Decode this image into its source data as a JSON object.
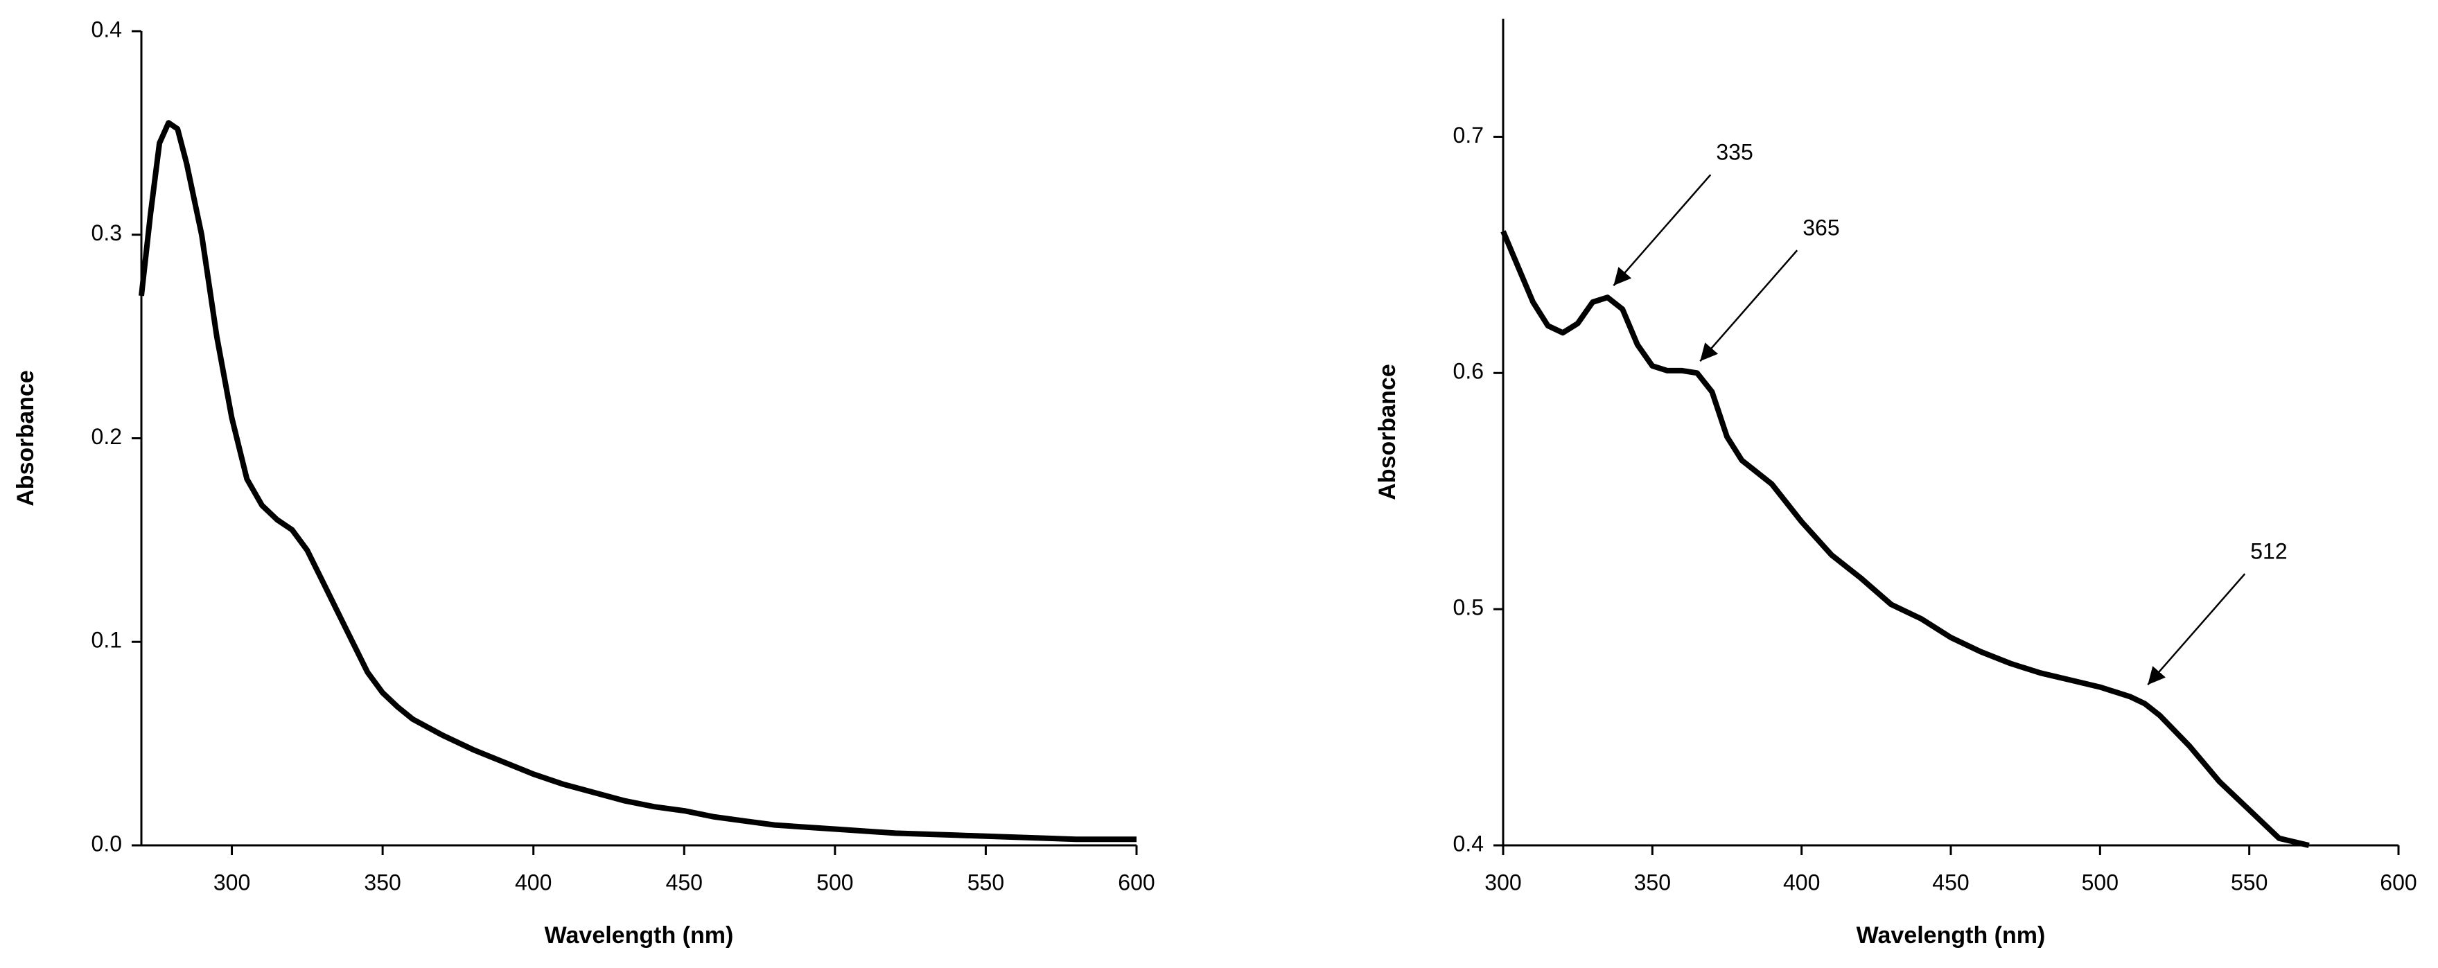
{
  "chart_data": [
    {
      "type": "line",
      "x_label": "Wavelength (nm)",
      "y_label": "Absorbance",
      "xlim": [
        270,
        600
      ],
      "xticks": [
        300,
        350,
        400,
        450,
        500,
        550,
        600
      ],
      "ylim": [
        0,
        0.4
      ],
      "yticks": [
        {
          "value": 0,
          "label": "0.0"
        },
        0.1,
        0.2,
        0.3,
        0.4
      ],
      "series": [
        {
          "color": "#000000",
          "x": [
            270,
            273,
            276,
            279,
            282,
            285,
            290,
            295,
            300,
            305,
            310,
            315,
            320,
            325,
            330,
            335,
            340,
            345,
            350,
            355,
            360,
            370,
            380,
            390,
            400,
            410,
            420,
            430,
            440,
            450,
            460,
            470,
            480,
            490,
            500,
            520,
            540,
            560,
            580,
            600
          ],
          "values": [
            0.27,
            0.31,
            0.345,
            0.355,
            0.352,
            0.335,
            0.3,
            0.25,
            0.21,
            0.18,
            0.167,
            0.16,
            0.155,
            0.145,
            0.13,
            0.115,
            0.1,
            0.085,
            0.075,
            0.068,
            0.062,
            0.054,
            0.047,
            0.041,
            0.035,
            0.03,
            0.026,
            0.022,
            0.019,
            0.017,
            0.014,
            0.012,
            0.01,
            0.009,
            0.008,
            0.006,
            0.005,
            0.004,
            0.003,
            0.003
          ]
        }
      ]
    },
    {
      "type": "line",
      "x_label": "Wavelength (nm)",
      "y_label": "Absorbance",
      "xlim": [
        300,
        600
      ],
      "xticks": [
        300,
        350,
        400,
        450,
        500,
        550,
        600
      ],
      "ylim": [
        0.4,
        0.75
      ],
      "yticks": [
        0.4,
        0.5,
        0.6,
        0.7
      ],
      "series": [
        {
          "color": "#000000",
          "x": [
            300,
            305,
            310,
            315,
            320,
            325,
            330,
            335,
            340,
            345,
            350,
            355,
            360,
            365,
            370,
            375,
            380,
            390,
            400,
            410,
            420,
            430,
            440,
            450,
            460,
            470,
            480,
            490,
            500,
            510,
            515,
            520,
            530,
            540,
            550,
            560,
            570
          ],
          "values": [
            0.66,
            0.645,
            0.63,
            0.62,
            0.617,
            0.621,
            0.63,
            0.632,
            0.627,
            0.612,
            0.603,
            0.601,
            0.601,
            0.6,
            0.592,
            0.573,
            0.563,
            0.553,
            0.537,
            0.523,
            0.513,
            0.502,
            0.496,
            0.488,
            0.482,
            0.477,
            0.473,
            0.47,
            0.467,
            0.463,
            0.46,
            0.455,
            0.442,
            0.427,
            0.415,
            0.403,
            0.4
          ]
        }
      ],
      "annotations": [
        {
          "label": "335",
          "x": 337,
          "y": 0.637
        },
        {
          "label": "365",
          "x": 366,
          "y": 0.605
        },
        {
          "label": "512",
          "x": 516,
          "y": 0.468
        }
      ]
    }
  ]
}
